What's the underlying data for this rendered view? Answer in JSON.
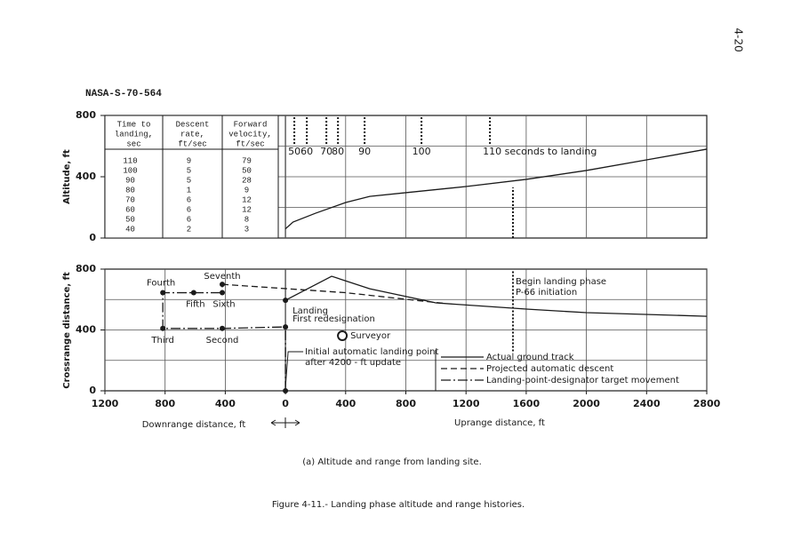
{
  "page_number": "4-20",
  "document_id": "NASA-S-70-564",
  "caption": "(a) Altitude and range from landing site.",
  "figure_caption": "Figure 4-11.- Landing phase altitude and range histories.",
  "chart_data": [
    {
      "type": "line",
      "ylabel": "Altitude, ft",
      "xlim": [
        -1200,
        2800
      ],
      "ylim": [
        0,
        800
      ],
      "yticks": [
        0,
        400,
        800
      ],
      "xgrid": [
        0,
        400,
        800,
        1200,
        1600,
        2000,
        2400
      ],
      "ygrid": [
        200,
        400,
        600
      ],
      "table": {
        "columns": [
          [
            "Time to",
            "landing,",
            "sec"
          ],
          [
            "Descent",
            "rate,",
            "ft/sec"
          ],
          [
            "Forward",
            "velocity,",
            "ft/sec"
          ]
        ],
        "rows": [
          [
            "110",
            "9",
            "79"
          ],
          [
            "100",
            "5",
            "50"
          ],
          [
            "90",
            "5",
            "28"
          ],
          [
            "80",
            "1",
            "9"
          ],
          [
            "70",
            "6",
            "12"
          ],
          [
            "60",
            "6",
            "12"
          ],
          [
            "50",
            "6",
            "8"
          ],
          [
            "40",
            "2",
            "3"
          ]
        ]
      },
      "time_markers": [
        {
          "label": "50",
          "x": 59
        },
        {
          "label": "60",
          "x": 142
        },
        {
          "label": "70",
          "x": 272
        },
        {
          "label": "80",
          "x": 349
        },
        {
          "label": "90",
          "x": 526
        },
        {
          "label": "100",
          "x": 904
        },
        {
          "label": "110 seconds to landing",
          "x": 1359
        }
      ],
      "phase_line": {
        "x": 1512,
        "y": [
          0,
          330
        ]
      },
      "series": [
        {
          "color": "#1a1a1a",
          "x": [
            0,
            50,
            200,
            400,
            560,
            800,
            1200,
            1600,
            2000,
            2400,
            2800
          ],
          "values": [
            60,
            104,
            162,
            232,
            272,
            296,
            336,
            383,
            441,
            510,
            580
          ]
        }
      ]
    },
    {
      "type": "line",
      "ylabel": "Crossrange distance, ft",
      "xlabel_left": "Downrange distance, ft",
      "xlabel_right": "Uprange distance, ft",
      "xlim": [
        -1200,
        2800
      ],
      "ylim": [
        0,
        800
      ],
      "xticks": [
        {
          "value": -1200,
          "label": "1200"
        },
        {
          "value": -800,
          "label": "800"
        },
        {
          "value": -400,
          "label": "400"
        },
        0,
        400,
        800,
        1200,
        1600,
        2000,
        2400,
        2800
      ],
      "yticks": [
        0,
        400,
        800
      ],
      "ygrid": [
        200,
        400,
        600
      ],
      "legend": "lower right",
      "phase_line": {
        "x": 1512,
        "y": [
          260,
          800
        ],
        "label": [
          "Begin landing phase",
          "P-66 initiation"
        ]
      },
      "landmarks": [
        {
          "label": "Surveyor",
          "x": 378,
          "y": 362
        }
      ],
      "series": [
        {
          "name": "Actual ground track",
          "color": "#1a1a1a",
          "line_style": "solid",
          "x": [
            0,
            307,
            560,
            1000,
            1600,
            2000,
            2800
          ],
          "values": [
            595,
            753,
            671,
            578,
            537,
            514,
            490
          ],
          "point_labels": [
            "Landing",
            null,
            null,
            null,
            null,
            null,
            null
          ]
        },
        {
          "name": "Projected automatic descent",
          "color": "#1a1a1a",
          "line_style": "dashed",
          "x": [
            -420,
            400,
            1050
          ],
          "values": [
            700,
            645,
            575
          ]
        },
        {
          "name": "Landing-point-designator target movement",
          "color": "#1a1a1a",
          "line_style": "dashdot",
          "x": [
            0,
            0,
            -420,
            -815,
            -815,
            -610,
            -420,
            -420
          ],
          "values": [
            0,
            420,
            410,
            410,
            645,
            645,
            645,
            700
          ],
          "point_labels": [
            [
              "Initial automatic landing point",
              "after 4200 - ft update"
            ],
            "First redesignation",
            "Second",
            "Third",
            "Fourth",
            "Fifth",
            "Sixth",
            "Seventh"
          ]
        }
      ]
    }
  ]
}
